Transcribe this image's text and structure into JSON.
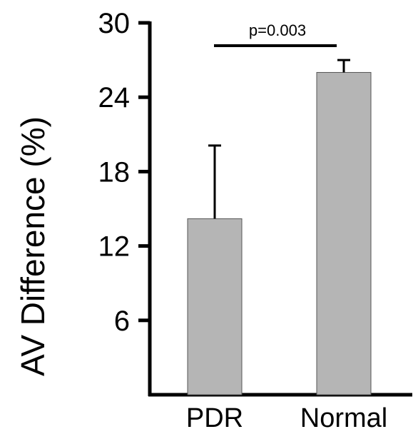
{
  "chart_data": {
    "type": "bar",
    "categories": [
      "PDR",
      "Normal"
    ],
    "values": [
      14.2,
      26.0
    ],
    "error_upper": [
      20.1,
      27.0
    ],
    "ylabel": "AV Difference (%)",
    "ylim": [
      0,
      30
    ],
    "yticks": [
      "6",
      "12",
      "18",
      "24",
      "30"
    ],
    "significance": "p=0.003",
    "bar_color": "#b5b5b5",
    "grid": false
  }
}
